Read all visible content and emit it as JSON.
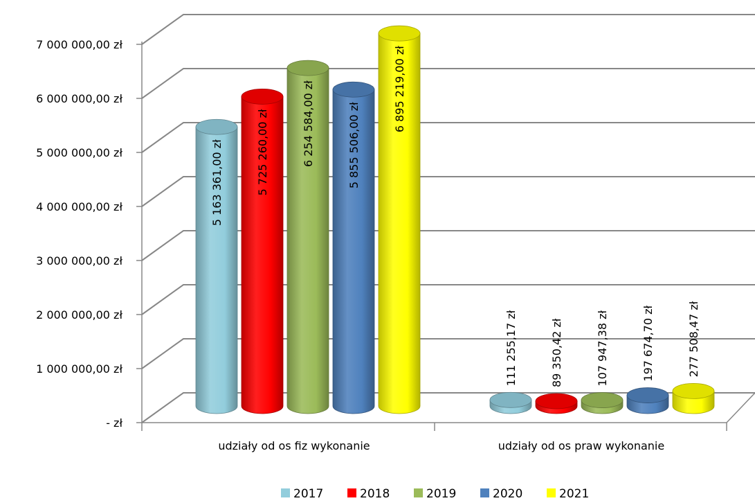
{
  "chart_data": {
    "type": "bar",
    "style": "3d-cylinder",
    "categories": [
      "udziały od os fiz wykonanie",
      "udziały od os praw wykonanie"
    ],
    "series": [
      {
        "name": "2017",
        "color": "#92cddc",
        "values": [
          5163361.0,
          111255.17
        ],
        "labels": [
          "5 163 361,00 zł",
          "111 255,17 zł"
        ]
      },
      {
        "name": "2018",
        "color": "#ff0000",
        "values": [
          5725260.0,
          89350.42
        ],
        "labels": [
          "5 725 260,00 zł",
          "89 350,42 zł"
        ]
      },
      {
        "name": "2019",
        "color": "#9bbb59",
        "values": [
          6254584.0,
          107947.38
        ],
        "labels": [
          "6 254 584,00 zł",
          "107 947,38 zł"
        ]
      },
      {
        "name": "2020",
        "color": "#4f81bd",
        "values": [
          5855506.0,
          197674.7
        ],
        "labels": [
          "5 855 506,00 zł",
          "197 674,70 zł"
        ]
      },
      {
        "name": "2021",
        "color": "#ffff00",
        "values": [
          6895219.0,
          277508.47
        ],
        "labels": [
          "6 895 219,00 zł",
          "277 508,47 zł"
        ]
      }
    ],
    "yticks": [
      {
        "value": 0,
        "label": "-  zł"
      },
      {
        "value": 1000000,
        "label": "1 000 000,00 zł"
      },
      {
        "value": 2000000,
        "label": "2 000 000,00 zł"
      },
      {
        "value": 3000000,
        "label": "3 000 000,00 zł"
      },
      {
        "value": 4000000,
        "label": "4 000 000,00 zł"
      },
      {
        "value": 5000000,
        "label": "5 000 000,00 zł"
      },
      {
        "value": 6000000,
        "label": "6 000 000,00 zł"
      },
      {
        "value": 7000000,
        "label": "7 000 000,00 zł"
      }
    ],
    "ylim": [
      0,
      7000000
    ],
    "grid": true,
    "legend_position": "bottom"
  }
}
